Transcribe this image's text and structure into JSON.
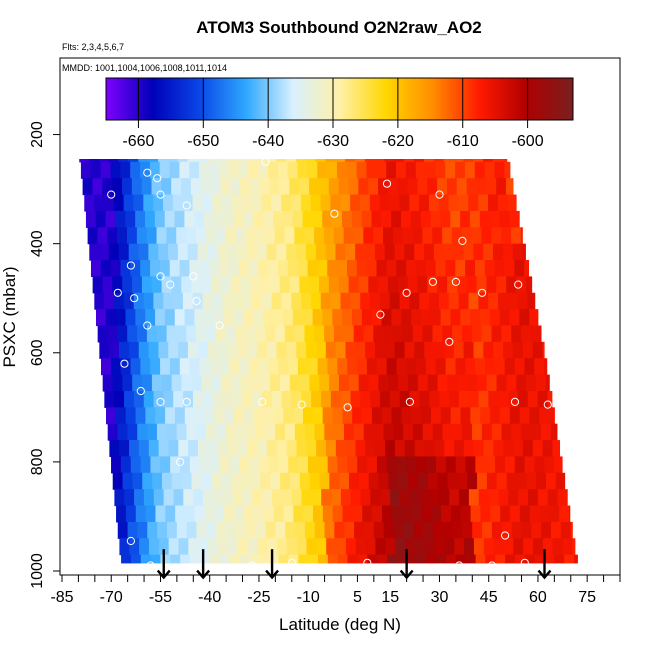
{
  "chart_data": {
    "type": "heatmap",
    "title": "ATOM3 Southbound O2N2raw_AO2",
    "subtitle_flights": "Flts: 2,3,4,5,6,7",
    "subtitle_dates": "MMDD: 1001,1004,1006,1008,1011,1014",
    "xlabel": "Latitude (deg N)",
    "ylabel": "PSXC (mbar)",
    "xlim": [
      -85,
      85
    ],
    "ylim": [
      1000,
      100
    ],
    "x_ticks": [
      -85,
      -70,
      -55,
      -40,
      -25,
      -10,
      5,
      15,
      30,
      45,
      60,
      75
    ],
    "y_ticks": [
      200,
      400,
      600,
      800,
      1000
    ],
    "colorbar": {
      "ticks": [
        -660,
        -650,
        -640,
        -630,
        -620,
        -610,
        -600
      ],
      "range": [
        -665,
        -593
      ],
      "colors": [
        "#7F00FF",
        "#0000B8",
        "#0A46E6",
        "#2FA8FF",
        "#D8F0FF",
        "#FFF0A8",
        "#FFD700",
        "#FF8C00",
        "#FF1A00",
        "#B00000",
        "#7A1F1F"
      ]
    },
    "profile_arrows_lat": [
      -54,
      -42,
      -21,
      20,
      62
    ],
    "field_model": {
      "lat_anchors": [
        -70,
        -62,
        -55,
        -45,
        -35,
        -25,
        -15,
        -5,
        5,
        15,
        25,
        35,
        45,
        55,
        65,
        72
      ],
      "value_anchors": [
        -660,
        -648,
        -640,
        -636,
        -632,
        -630,
        -627,
        -619,
        -612,
        -606,
        -608,
        -611,
        -608,
        -605,
        -606,
        -607
      ],
      "top_pressure": 220,
      "bottom_pressure": 985,
      "layer_step_mbar": 30,
      "south_edge": [
        [
          220,
          -80
        ],
        [
          985,
          -67
        ]
      ],
      "north_edge": [
        [
          220,
          50
        ],
        [
          600,
          62
        ],
        [
          985,
          72
        ]
      ]
    },
    "observations": [
      [
        -82,
        225
      ],
      [
        -75,
        225
      ],
      [
        -67,
        225
      ],
      [
        -60,
        230
      ],
      [
        -50,
        225
      ],
      [
        -24,
        195
      ],
      [
        -10,
        230
      ],
      [
        -23,
        250
      ],
      [
        -59,
        270
      ],
      [
        -56,
        280
      ],
      [
        -70,
        310
      ],
      [
        -55,
        310
      ],
      [
        -47,
        330
      ],
      [
        -2,
        345
      ],
      [
        30,
        310
      ],
      [
        14,
        290
      ],
      [
        37,
        395
      ],
      [
        -64,
        440
      ],
      [
        -55,
        460
      ],
      [
        -45,
        460
      ],
      [
        -68,
        490
      ],
      [
        -63,
        500
      ],
      [
        -52,
        475
      ],
      [
        -44,
        505
      ],
      [
        20,
        490
      ],
      [
        28,
        470
      ],
      [
        35,
        470
      ],
      [
        43,
        490
      ],
      [
        54,
        475
      ],
      [
        60,
        450
      ],
      [
        -37,
        550
      ],
      [
        -59,
        550
      ],
      [
        -66,
        620
      ],
      [
        12,
        530
      ],
      [
        33,
        580
      ],
      [
        -61,
        670
      ],
      [
        -55,
        690
      ],
      [
        -47,
        690
      ],
      [
        -24,
        690
      ],
      [
        -12,
        695
      ],
      [
        2,
        700
      ],
      [
        21,
        690
      ],
      [
        53,
        690
      ],
      [
        63,
        695
      ],
      [
        72,
        665
      ],
      [
        -49,
        800
      ],
      [
        -64,
        945
      ],
      [
        -58,
        990
      ],
      [
        -46,
        1000
      ],
      [
        -33,
        1000
      ],
      [
        -27,
        990
      ],
      [
        -15,
        985
      ],
      [
        8,
        985
      ],
      [
        19,
        995
      ],
      [
        27,
        995
      ],
      [
        36,
        990
      ],
      [
        46,
        990
      ],
      [
        56,
        985
      ],
      [
        72,
        1000
      ],
      [
        50,
        935
      ]
    ]
  }
}
